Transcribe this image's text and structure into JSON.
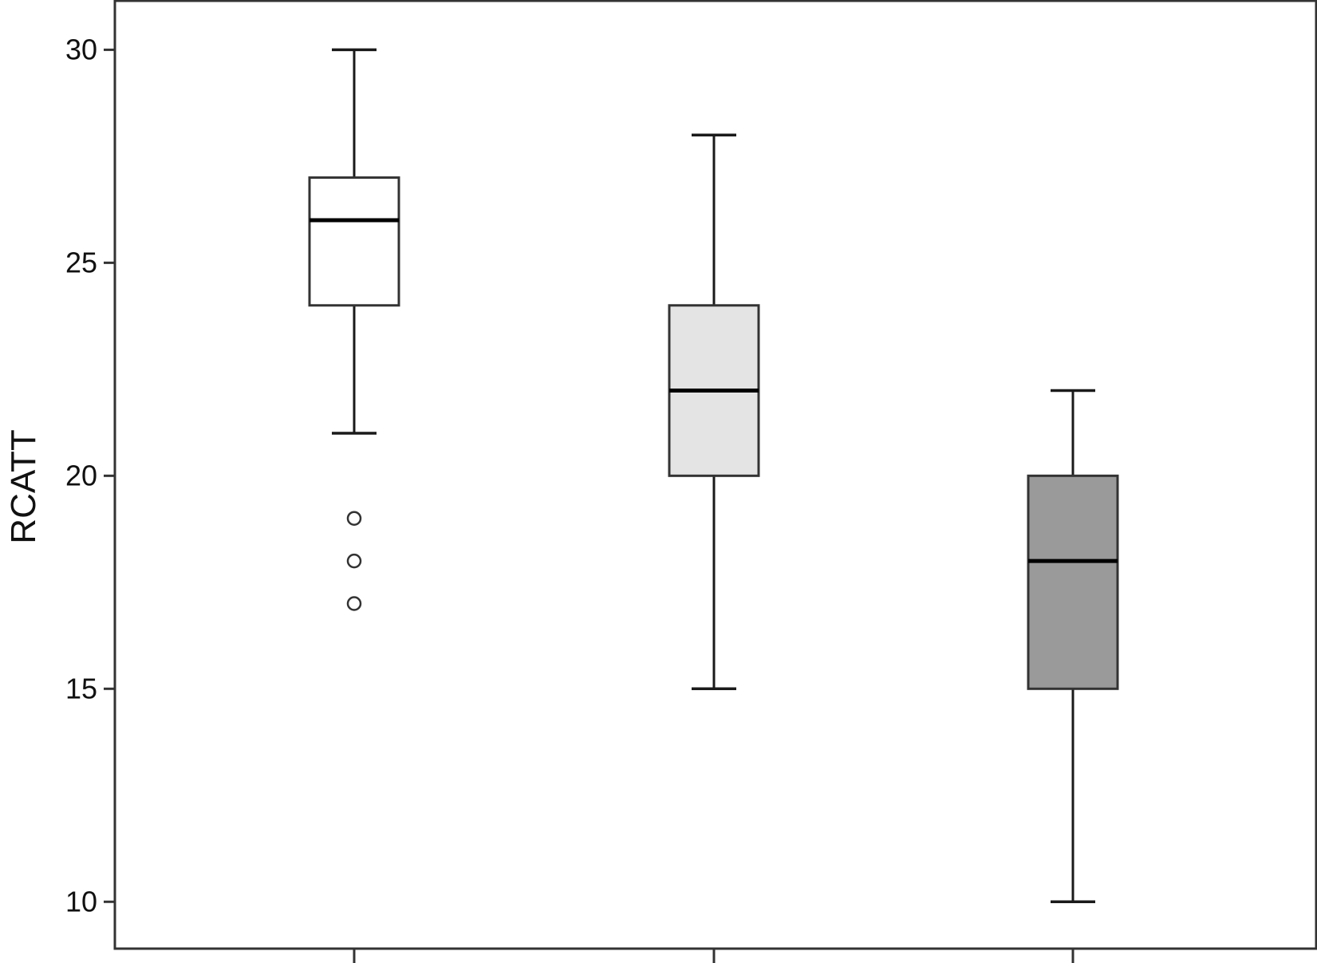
{
  "chart_data": {
    "type": "box",
    "ylabel": "RCATT",
    "xlabel": "",
    "ylim": [
      8.9,
      31.15
    ],
    "yticks": [
      10,
      15,
      20,
      25,
      30
    ],
    "grid": false,
    "groups": [
      {
        "min": 21,
        "q1": 24,
        "median": 26,
        "q3": 27,
        "max": 30,
        "outliers": [
          19,
          18,
          17
        ],
        "fill": "#ffffff"
      },
      {
        "min": 15,
        "q1": 20,
        "median": 22,
        "q3": 24,
        "max": 28,
        "outliers": [],
        "fill": "#e4e4e4"
      },
      {
        "min": 10,
        "q1": 15,
        "median": 18,
        "q3": 20,
        "max": 22,
        "outliers": [],
        "fill": "#9a9a9a"
      }
    ]
  }
}
